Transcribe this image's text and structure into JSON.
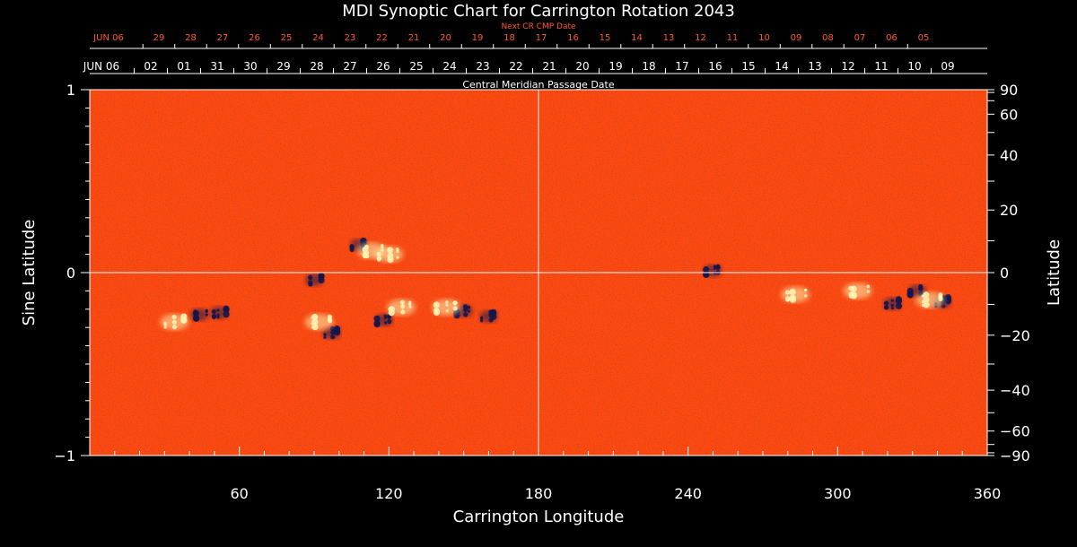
{
  "chart_data": {
    "type": "heatmap",
    "title": "MDI Synoptic Chart for Carrington Rotation 2043",
    "xlabel": "Carrington Longitude",
    "ylabel_left": "Sine Latitude",
    "ylabel_right": "Latitude",
    "xlim": [
      0,
      360
    ],
    "ylim_sine": [
      -1,
      1
    ],
    "x_ticks": [
      "60",
      "120",
      "180",
      "240",
      "300",
      "360"
    ],
    "y_left_ticks": [
      "1",
      "0",
      "−1"
    ],
    "y_right_ticks": [
      "90",
      "60",
      "40",
      "20",
      "0",
      "−20",
      "−40",
      "−60",
      "−90"
    ],
    "y_right_tick_values": [
      90,
      60,
      40,
      20,
      0,
      -20,
      -40,
      -60,
      -90
    ],
    "center_line_longitude": 180,
    "cmp_axis_label": "Central Meridian Passage Date",
    "cmp_dates": [
      "JUN 06",
      "02",
      "01",
      "31",
      "30",
      "29",
      "28",
      "27",
      "26",
      "25",
      "24",
      "23",
      "22",
      "21",
      "20",
      "19",
      "18",
      "17",
      "16",
      "15",
      "14",
      "13",
      "12",
      "11",
      "10",
      "09"
    ],
    "next_cmp_axis_label": "Next CR CMP Date",
    "next_cmp_dates": [
      "JUN 06",
      "29",
      "28",
      "27",
      "26",
      "25",
      "24",
      "23",
      "22",
      "21",
      "20",
      "19",
      "18",
      "17",
      "16",
      "15",
      "14",
      "13",
      "12",
      "11",
      "10",
      "09",
      "08",
      "07",
      "06",
      "05"
    ],
    "colors": {
      "background_field": "#ff4a10",
      "positive_polarity": "#fff2b0",
      "negative_polarity": "#15154a",
      "axis": "#ffffff",
      "next_cmp_text": "#ff5a2a"
    },
    "active_regions": [
      {
        "lon": 44,
        "sinlat": -0.23,
        "polarity": "negative"
      },
      {
        "lon": 52,
        "sinlat": -0.22,
        "polarity": "negative"
      },
      {
        "lon": 34,
        "sinlat": -0.27,
        "polarity": "positive"
      },
      {
        "lon": 97,
        "sinlat": -0.33,
        "polarity": "negative"
      },
      {
        "lon": 92,
        "sinlat": -0.27,
        "polarity": "positive"
      },
      {
        "lon": 90,
        "sinlat": -0.04,
        "polarity": "negative"
      },
      {
        "lon": 108,
        "sinlat": 0.15,
        "polarity": "negative"
      },
      {
        "lon": 113,
        "sinlat": 0.12,
        "polarity": "positive"
      },
      {
        "lon": 120,
        "sinlat": 0.1,
        "polarity": "positive"
      },
      {
        "lon": 118,
        "sinlat": -0.26,
        "polarity": "negative"
      },
      {
        "lon": 125,
        "sinlat": -0.19,
        "polarity": "positive"
      },
      {
        "lon": 150,
        "sinlat": -0.21,
        "polarity": "negative"
      },
      {
        "lon": 160,
        "sinlat": -0.24,
        "polarity": "negative"
      },
      {
        "lon": 143,
        "sinlat": -0.19,
        "polarity": "positive"
      },
      {
        "lon": 250,
        "sinlat": 0.01,
        "polarity": "negative"
      },
      {
        "lon": 283,
        "sinlat": -0.12,
        "polarity": "positive"
      },
      {
        "lon": 308,
        "sinlat": -0.1,
        "polarity": "positive"
      },
      {
        "lon": 322,
        "sinlat": -0.17,
        "polarity": "negative"
      },
      {
        "lon": 332,
        "sinlat": -0.1,
        "polarity": "negative"
      },
      {
        "lon": 342,
        "sinlat": -0.16,
        "polarity": "negative"
      },
      {
        "lon": 337,
        "sinlat": -0.15,
        "polarity": "positive"
      }
    ]
  }
}
